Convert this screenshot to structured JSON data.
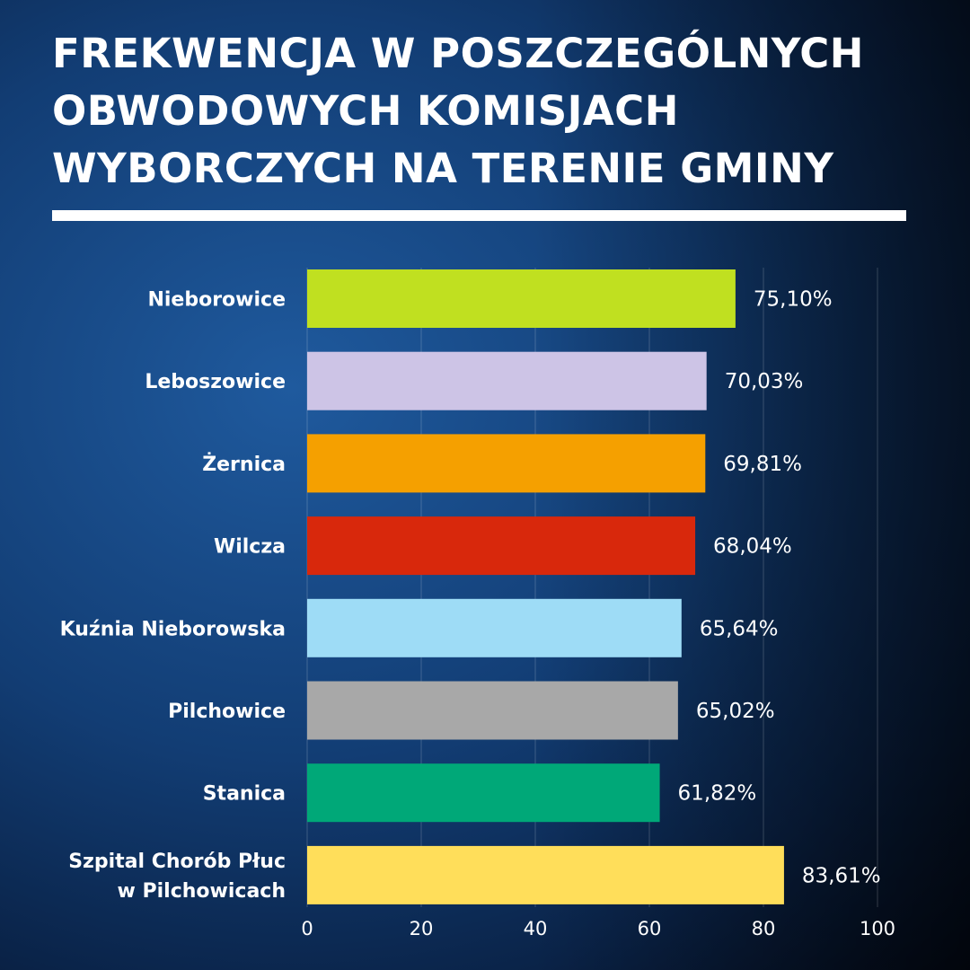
{
  "title_lines": [
    "FREKWENCJA W POSZCZEGÓLNYCH",
    "OBWODOWYCH KOMISJACH",
    "WYBORCZYCH NA TERENIE GMINY"
  ],
  "chart_data": {
    "type": "bar",
    "orientation": "horizontal",
    "categories": [
      [
        "Nieborowice"
      ],
      [
        "Leboszowice"
      ],
      [
        "Żernica"
      ],
      [
        "Wilcza"
      ],
      [
        "Kuźnia Nieborowska"
      ],
      [
        "Pilchowice"
      ],
      [
        "Stanica"
      ],
      [
        "Szpital Chorób Płuc",
        "w Pilchowicach"
      ]
    ],
    "values": [
      75.1,
      70.03,
      69.81,
      68.04,
      65.64,
      65.02,
      61.82,
      83.61
    ],
    "value_labels": [
      "75,10%",
      "70,03%",
      "69,81%",
      "68,04%",
      "65,64%",
      "65,02%",
      "61,82%",
      "83,61%"
    ],
    "colors": [
      "#c0e020",
      "#cdc4e6",
      "#f5a000",
      "#d8280c",
      "#9edcf6",
      "#a8a8a8",
      "#00a878",
      "#ffde5a"
    ],
    "xlim": [
      0,
      100
    ],
    "xticks": [
      0,
      20,
      40,
      60,
      80,
      100
    ],
    "grid": true
  }
}
